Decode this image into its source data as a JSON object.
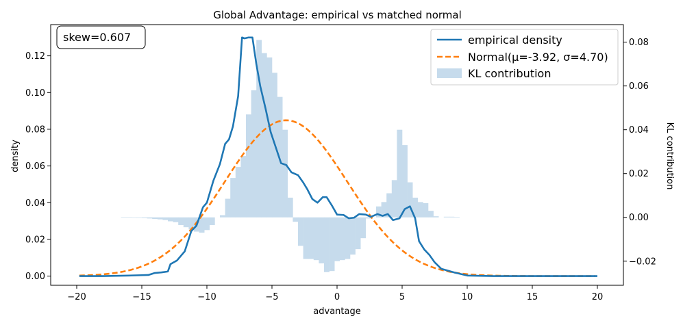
{
  "chart_data": {
    "type": "line",
    "title": "Global Advantage: empirical vs matched normal",
    "xlabel": "advantage",
    "ylabel": "density",
    "y2label": "KL contribution",
    "xlim": [
      -22,
      22
    ],
    "ylim": [
      -0.005,
      0.137
    ],
    "y2lim": [
      -0.031,
      0.088
    ],
    "xticks": [
      "−20",
      "−15",
      "−10",
      "−5",
      "0",
      "5",
      "10",
      "15",
      "20"
    ],
    "xtick_values": [
      -20,
      -15,
      -10,
      -5,
      0,
      5,
      10,
      15,
      20
    ],
    "yticks": [
      "0.00",
      "0.02",
      "0.04",
      "0.06",
      "0.08",
      "0.10",
      "0.12"
    ],
    "ytick_values": [
      0,
      0.02,
      0.04,
      0.06,
      0.08,
      0.1,
      0.12
    ],
    "y2ticks": [
      "−0.02",
      "0.00",
      "0.02",
      "0.04",
      "0.06",
      "0.08"
    ],
    "y2tick_values": [
      -0.02,
      0,
      0.02,
      0.04,
      0.06,
      0.08
    ],
    "annotation": "skew=0.607",
    "legend": {
      "placement": "top-right",
      "entries": [
        "empirical density",
        "Normal(μ=-3.92, σ=4.70)",
        "KL contribution"
      ]
    },
    "colors": {
      "empirical": "#1f77b4",
      "normal": "#ff7f0e",
      "kl": "#c6dbec"
    },
    "series": [
      {
        "name": "empirical density",
        "style": "solid",
        "x": [
          -19.8,
          -18,
          -16,
          -15,
          -14.5,
          -14,
          -13.5,
          -13,
          -12.8,
          -12.3,
          -12,
          -11.7,
          -11.2,
          -10.8,
          -10.3,
          -10,
          -9.5,
          -9,
          -8.6,
          -8.3,
          -8,
          -7.6,
          -7.3,
          -7.1,
          -6.8,
          -6.5,
          -6.2,
          -5.9,
          -5.5,
          -5.1,
          -4.7,
          -4.3,
          -3.9,
          -3.5,
          -3,
          -2.6,
          -2.3,
          -1.9,
          -1.5,
          -1.1,
          -0.8,
          -0.4,
          0,
          0.5,
          0.9,
          1.3,
          1.7,
          2.2,
          2.6,
          3.1,
          3.5,
          3.9,
          4.3,
          4.8,
          5.2,
          5.6,
          6,
          6.3,
          6.7,
          7.1,
          7.5,
          8,
          9,
          10,
          12,
          15,
          18,
          20
        ],
        "y": [
          0.0,
          0.0,
          0.0003,
          0.0005,
          0.0006,
          0.0017,
          0.002,
          0.0025,
          0.0065,
          0.0085,
          0.011,
          0.0135,
          0.0245,
          0.0275,
          0.0375,
          0.04,
          0.052,
          0.061,
          0.072,
          0.0745,
          0.0815,
          0.098,
          0.13,
          0.1295,
          0.13,
          0.13,
          0.1155,
          0.1035,
          0.0915,
          0.0785,
          0.07,
          0.0615,
          0.0605,
          0.0565,
          0.055,
          0.051,
          0.0475,
          0.042,
          0.04,
          0.043,
          0.043,
          0.0385,
          0.0335,
          0.0333,
          0.0315,
          0.0318,
          0.0338,
          0.0335,
          0.0323,
          0.0338,
          0.0328,
          0.0338,
          0.0305,
          0.0315,
          0.0365,
          0.038,
          0.0315,
          0.019,
          0.0145,
          0.0115,
          0.0075,
          0.004,
          0.002,
          0.0003,
          0.0,
          0.0,
          0.0,
          0.0
        ]
      },
      {
        "name": "Normal(μ=-3.92, σ=4.70)",
        "style": "dashed",
        "mu": -3.92,
        "sigma": 4.7
      }
    ],
    "kl_bars": {
      "name": "KL contribution",
      "x_start": -19.8,
      "bin_width": 0.4,
      "values": [
        0.0,
        0.0,
        0.0,
        0.0,
        0.0,
        0.0,
        0.0,
        0.0,
        0.0001,
        0.0001,
        -0.0001,
        -0.0002,
        -0.0003,
        -0.0005,
        -0.0007,
        -0.0009,
        -0.0012,
        -0.0018,
        -0.0022,
        -0.0035,
        -0.0045,
        -0.0055,
        -0.0065,
        -0.007,
        -0.0058,
        -0.0035,
        0.0,
        0.001,
        0.0085,
        0.018,
        0.023,
        0.028,
        0.047,
        0.058,
        0.081,
        0.075,
        0.073,
        0.066,
        0.055,
        0.04,
        0.009,
        -0.002,
        -0.013,
        -0.019,
        -0.019,
        -0.0195,
        -0.021,
        -0.025,
        -0.0245,
        -0.02,
        -0.0195,
        -0.019,
        -0.017,
        -0.0145,
        -0.0095,
        -0.0005,
        0.0,
        0.005,
        0.007,
        0.011,
        0.017,
        0.04,
        0.033,
        0.016,
        0.009,
        0.007,
        0.0065,
        0.003,
        0.0005,
        0.0,
        0.0003,
        0.0003,
        0.0002,
        0.0,
        0.0,
        0.0,
        0.0,
        0.0,
        0.0,
        0.0,
        0.0,
        0.0,
        0.0,
        0.0,
        0.0,
        0.0,
        0.0,
        0.0,
        0.0,
        0.0,
        0.0,
        0.0,
        0.0,
        0.0,
        0.0,
        0.0,
        0.0,
        0.0,
        0.0
      ]
    }
  }
}
